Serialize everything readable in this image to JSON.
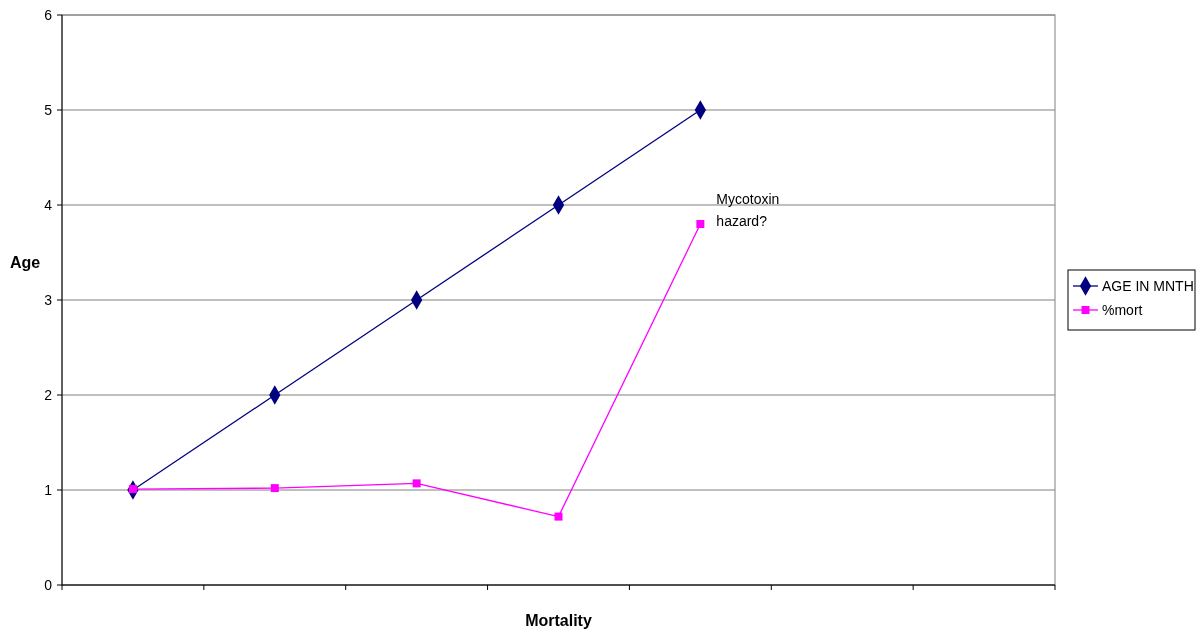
{
  "chart_data": {
    "type": "line",
    "xlabel": "Mortality",
    "ylabel": "Age",
    "categories": [
      null,
      null,
      null,
      null,
      null,
      null,
      null
    ],
    "series": [
      {
        "name": "AGE IN MNTH",
        "color": "#000080",
        "marker": "diamond",
        "values": [
          1,
          2,
          3,
          4,
          5,
          null,
          null
        ]
      },
      {
        "name": "%mort",
        "color": "#ff00ff",
        "marker": "square",
        "values": [
          1.01,
          1.02,
          1.07,
          0.72,
          3.8,
          null,
          null
        ]
      }
    ],
    "ylim": [
      0,
      6
    ],
    "yticks": [
      0,
      1,
      2,
      3,
      4,
      5,
      6
    ],
    "grid": "y",
    "legend": "right",
    "annotations": [
      "Mycotoxin hazard?"
    ]
  }
}
